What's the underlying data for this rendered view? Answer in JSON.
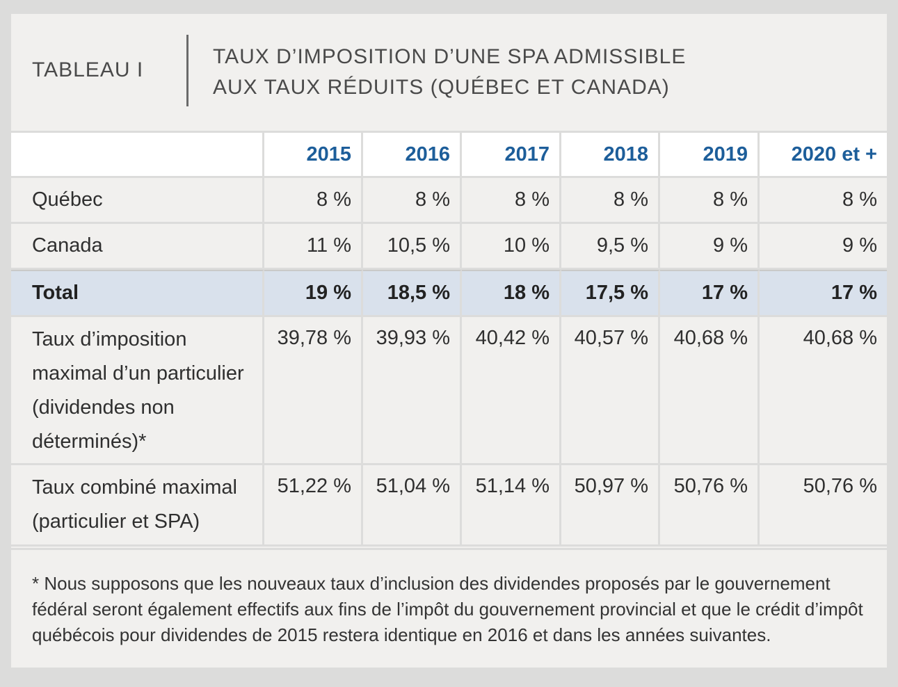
{
  "header": {
    "label": "TABLEAU I",
    "title_line1": "TAUX D’IMPOSITION D’UNE SPA ADMISSIBLE",
    "title_line2": "AUX TAUX RÉDUITS (QUÉBEC ET CANADA)"
  },
  "table": {
    "years": [
      "2015",
      "2016",
      "2017",
      "2018",
      "2019",
      "2020 et +"
    ],
    "rows": [
      {
        "label": "Québec",
        "values": [
          "8 %",
          "8 %",
          "8 %",
          "8 %",
          "8 %",
          "8 %"
        ]
      },
      {
        "label": "Canada",
        "values": [
          "11 %",
          "10,5 %",
          "10 %",
          "9,5 %",
          "9 %",
          "9 %"
        ]
      },
      {
        "label": "Total",
        "values": [
          "19 %",
          "18,5 %",
          "18 %",
          "17,5 %",
          "17 %",
          "17 %"
        ]
      },
      {
        "label": "Taux d’imposition maximal d’un particulier (dividendes non déterminés)*",
        "values": [
          "39,78 %",
          "39,93 %",
          "40,42 %",
          "40,57 %",
          "40,68 %",
          "40,68 %"
        ]
      },
      {
        "label": "Taux combiné maximal (particulier et SPA)",
        "values": [
          "51,22 %",
          "51,04 %",
          "51,14 %",
          "50,97 %",
          "50,76 %",
          "50,76 %"
        ]
      }
    ]
  },
  "footnote": "* Nous supposons que les nouveaux taux d’inclusion des dividendes proposés par le gouvernement fédéral seront également effectifs aux fins de l’impôt du gouvernement provincial et que le crédit d’impôt québécois pour dividendes de 2015 restera identique en 2016 et dans les années suivantes.",
  "colors": {
    "year_header": "#1d5e9a",
    "total_row_bg": "#d9e1ec",
    "panel_bg": "#f1f0ee",
    "frame": "#dcdcdb"
  }
}
